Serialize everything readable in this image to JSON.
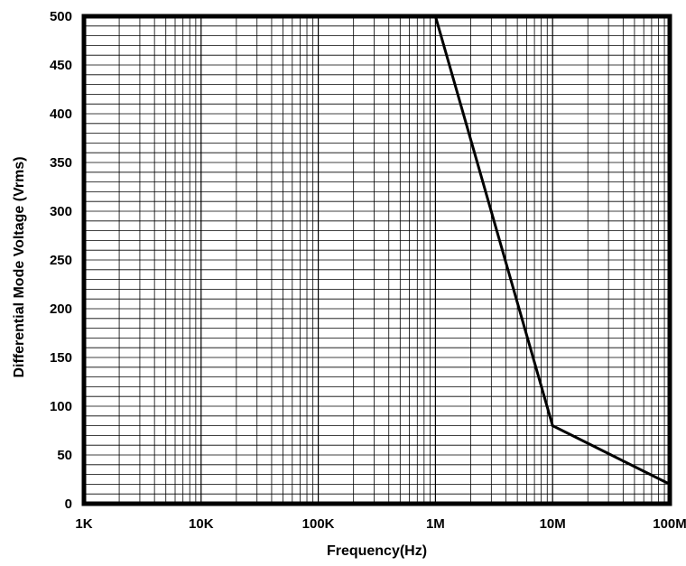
{
  "chart_data": {
    "type": "line",
    "title": "",
    "xlabel": "Frequency(Hz)",
    "ylabel": "Differential Mode Voltage (Vrms)",
    "x_scale": "log",
    "x_range": [
      1000,
      100000000
    ],
    "ylim": [
      0,
      500
    ],
    "grid": true,
    "x_tick_values": [
      1000,
      10000,
      100000,
      1000000,
      10000000,
      100000000
    ],
    "x_tick_labels": [
      "1K",
      "10K",
      "100K",
      "1M",
      "10M",
      "100M"
    ],
    "y_ticks": [
      0,
      50,
      100,
      150,
      200,
      250,
      300,
      350,
      400,
      450,
      500
    ],
    "line_color": "#000000",
    "series": [
      {
        "x": [
          1000,
          1000000,
          10000000,
          100000000
        ],
        "y": [
          500,
          500,
          80,
          20
        ]
      }
    ]
  }
}
